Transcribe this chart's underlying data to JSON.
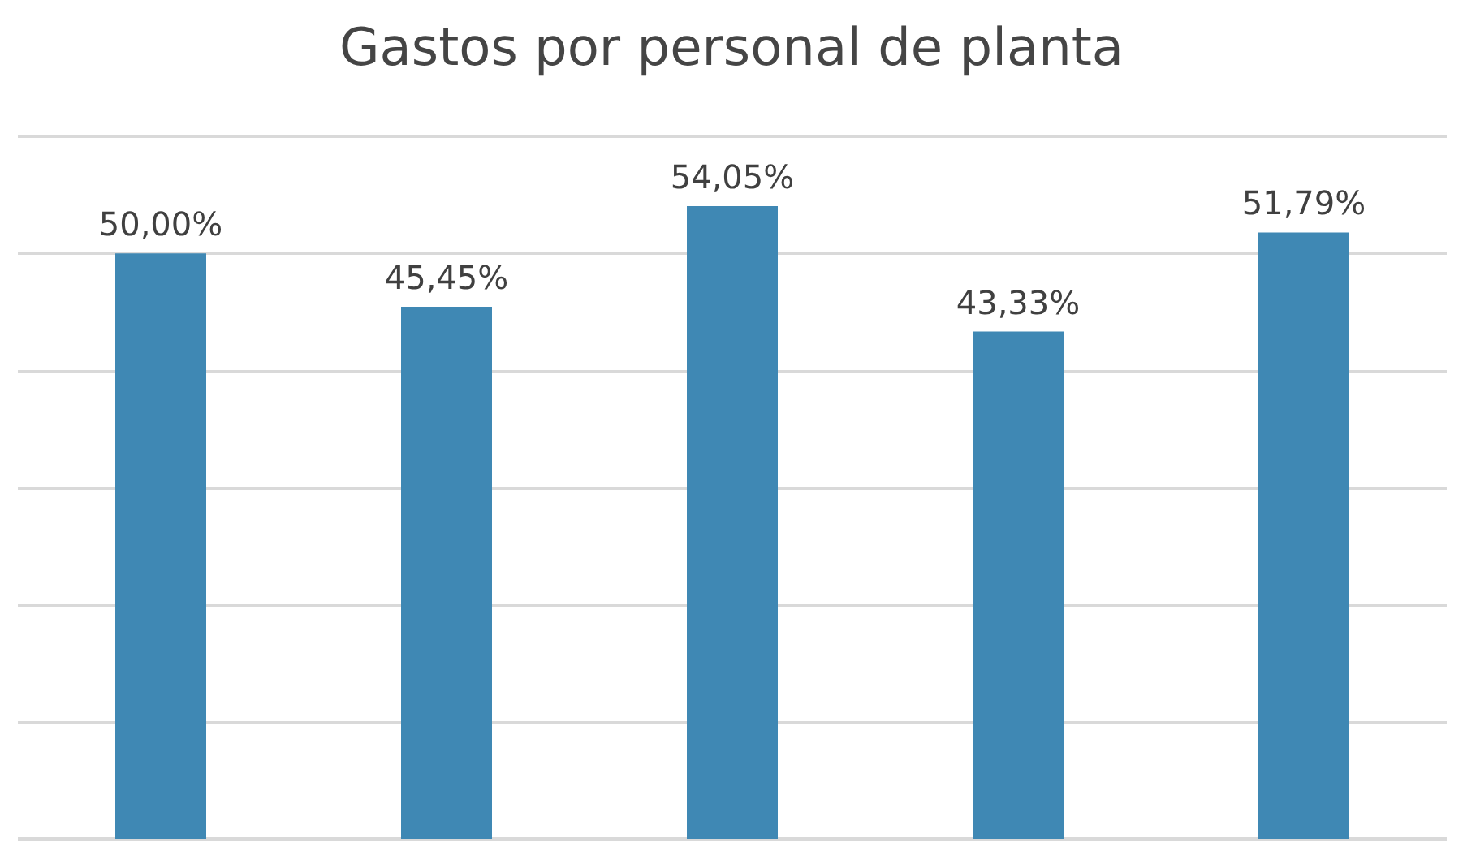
{
  "chart_data": {
    "type": "bar",
    "title": "Gastos por personal de planta",
    "categories": [
      null,
      null,
      null,
      null,
      null
    ],
    "values": [
      50,
      45.45,
      54.05,
      43.33,
      51.79
    ],
    "value_labels": [
      "50,00%",
      "45,45%",
      "54,05%",
      "43,33%",
      "51,79%"
    ],
    "color": "#3f88b4",
    "ylim": [
      0,
      60
    ],
    "yticks": [
      {
        "value": 0,
        "label": null
      },
      {
        "value": 10,
        "label": null
      },
      {
        "value": 20,
        "label": null
      },
      {
        "value": 30,
        "label": null
      },
      {
        "value": 40,
        "label": null
      },
      {
        "value": 50,
        "label": null
      },
      {
        "value": 60,
        "label": null
      }
    ],
    "grid": "y"
  }
}
